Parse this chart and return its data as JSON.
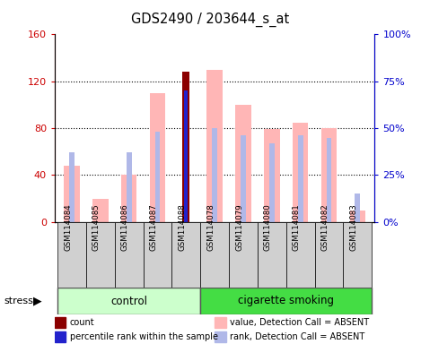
{
  "title": "GDS2490 / 203644_s_at",
  "samples": [
    "GSM114084",
    "GSM114085",
    "GSM114086",
    "GSM114087",
    "GSM114088",
    "GSM114078",
    "GSM114079",
    "GSM114080",
    "GSM114081",
    "GSM114082",
    "GSM114083"
  ],
  "groups": [
    "control",
    "control",
    "control",
    "control",
    "control",
    "cigarette smoking",
    "cigarette smoking",
    "cigarette smoking",
    "cigarette smoking",
    "cigarette smoking",
    "cigarette smoking"
  ],
  "value_absent": [
    48,
    20,
    40,
    110,
    null,
    130,
    100,
    79,
    85,
    80,
    10
  ],
  "rank_absent": [
    37,
    null,
    37,
    48,
    null,
    50,
    46,
    42,
    46,
    45,
    15
  ],
  "count": [
    null,
    null,
    null,
    null,
    128,
    null,
    null,
    null,
    null,
    null,
    null
  ],
  "percentile_rank": [
    null,
    null,
    null,
    null,
    70,
    null,
    null,
    null,
    null,
    null,
    null
  ],
  "ylim_left": [
    0,
    160
  ],
  "ylim_right": [
    0,
    100
  ],
  "yticks_left": [
    0,
    40,
    80,
    120,
    160
  ],
  "yticks_right": [
    0,
    25,
    50,
    75,
    100
  ],
  "ytick_labels_left": [
    "0",
    "40",
    "80",
    "120",
    "160"
  ],
  "ytick_labels_right": [
    "0%",
    "25%",
    "50%",
    "75%",
    "100%"
  ],
  "color_value_absent": "#ffb6b6",
  "color_rank_absent": "#b0b8e8",
  "color_count": "#8b0000",
  "color_percentile": "#2222cc",
  "color_control_bg": "#ccffcc",
  "color_smoking_bg": "#44dd44",
  "color_axis_left": "#cc0000",
  "color_axis_right": "#0000cc",
  "bar_width": 0.55,
  "rank_bar_width": 0.18,
  "count_bar_width": 0.25,
  "pct_bar_width": 0.12
}
